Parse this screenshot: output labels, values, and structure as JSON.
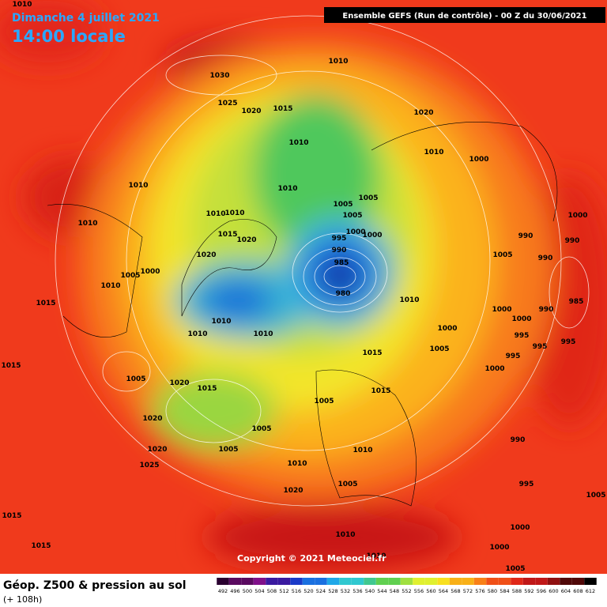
{
  "header": {
    "date": "Dimanche 4 juillet 2021",
    "time": "14:00 locale",
    "model": "Ensemble GEFS  (Run de contrôle)  -  00 Z du 30/06/2021"
  },
  "footer": {
    "title": "Géop. Z500 & pression au sol",
    "lead": "(+ 108h)",
    "copyright": "Copyright © 2021 Meteociel.fr"
  },
  "colorbar": {
    "labels": [
      "492",
      "496",
      "500",
      "504",
      "508",
      "512",
      "516",
      "520",
      "524",
      "528",
      "532",
      "536",
      "540",
      "544",
      "548",
      "552",
      "556",
      "560",
      "564",
      "568",
      "572",
      "576",
      "580",
      "584",
      "588",
      "592",
      "596",
      "600",
      "604",
      "608",
      "612"
    ]
  },
  "isobar_labels": [
    "1010",
    "1010",
    "1030",
    "1025",
    "1020",
    "1015",
    "1020",
    "1010",
    "1010",
    "1000",
    "1010",
    "1010",
    "1005",
    "1005",
    "1010",
    "1010",
    "1005",
    "1000",
    "1010",
    "1000",
    "1000",
    "995",
    "1015",
    "1020",
    "990",
    "990",
    "990",
    "1020",
    "1005",
    "990",
    "985",
    "1000",
    "1005",
    "1010",
    "980",
    "1010",
    "1015",
    "1000",
    "990",
    "985",
    "1000",
    "1010",
    "1010",
    "1010",
    "1000",
    "995",
    "995",
    "995",
    "1005",
    "1015",
    "995",
    "1015",
    "1000",
    "1005",
    "1020",
    "1015",
    "1015",
    "1005",
    "1020",
    "1005",
    "990",
    "1005",
    "1010",
    "1020",
    "1025",
    "1010",
    "1005",
    "995",
    "1020",
    "1005",
    "1015",
    "1010",
    "1000",
    "1015",
    "1000",
    "1010",
    "1005"
  ]
}
